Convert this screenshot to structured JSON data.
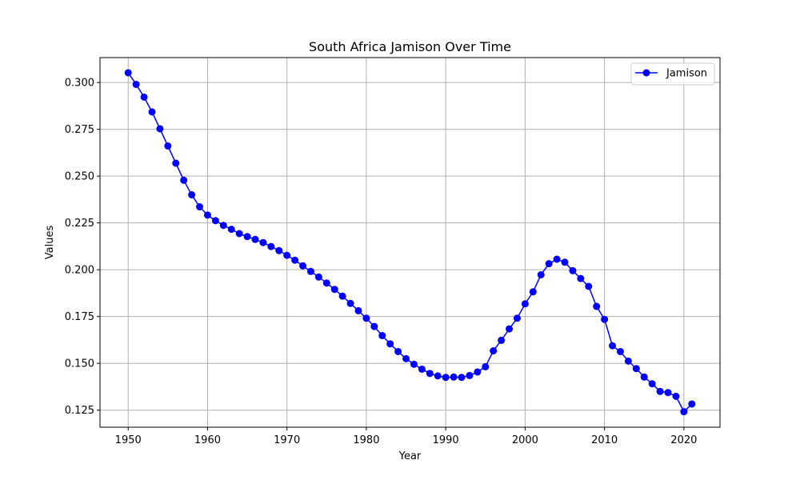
{
  "chart_data": {
    "type": "line",
    "title": "South Africa Jamison Over Time",
    "xlabel": "Year",
    "ylabel": "Values",
    "xlim": [
      1946.45,
      2024.55
    ],
    "ylim": [
      0.1159,
      0.3133
    ],
    "xticks": [
      1950,
      1960,
      1970,
      1980,
      1990,
      2000,
      2010,
      2020
    ],
    "yticks": [
      0.125,
      0.15,
      0.175,
      0.2,
      0.225,
      0.25,
      0.275,
      0.3
    ],
    "ytick_labels": [
      "0.125",
      "0.150",
      "0.175",
      "0.200",
      "0.225",
      "0.250",
      "0.275",
      "0.300"
    ],
    "grid": true,
    "legend_position": "upper right",
    "series": [
      {
        "name": "Jamison",
        "color": "#0000ff",
        "marker": "circle",
        "x": [
          1950,
          1951,
          1952,
          1953,
          1954,
          1955,
          1956,
          1957,
          1958,
          1959,
          1960,
          1961,
          1962,
          1963,
          1964,
          1965,
          1966,
          1967,
          1968,
          1969,
          1970,
          1971,
          1972,
          1973,
          1974,
          1975,
          1976,
          1977,
          1978,
          1979,
          1980,
          1981,
          1982,
          1983,
          1984,
          1985,
          1986,
          1987,
          1988,
          1989,
          1990,
          1991,
          1992,
          1993,
          1994,
          1995,
          1996,
          1997,
          1998,
          1999,
          2000,
          2001,
          2002,
          2003,
          2004,
          2005,
          2006,
          2007,
          2008,
          2009,
          2010,
          2011,
          2012,
          2013,
          2014,
          2015,
          2016,
          2017,
          2018,
          2019,
          2020,
          2021
        ],
        "y": [
          0.3052,
          0.299,
          0.2922,
          0.2843,
          0.2753,
          0.2661,
          0.2569,
          0.2478,
          0.24,
          0.2336,
          0.2292,
          0.2262,
          0.2237,
          0.2216,
          0.2193,
          0.2177,
          0.2162,
          0.2145,
          0.2124,
          0.2102,
          0.2077,
          0.2051,
          0.2021,
          0.1991,
          0.1961,
          0.1929,
          0.1895,
          0.1859,
          0.182,
          0.1781,
          0.1741,
          0.1697,
          0.1648,
          0.1604,
          0.1563,
          0.1525,
          0.1495,
          0.1469,
          0.1446,
          0.1433,
          0.1425,
          0.1427,
          0.1425,
          0.1435,
          0.1454,
          0.1482,
          0.1567,
          0.1623,
          0.1684,
          0.1741,
          0.1818,
          0.1882,
          0.1973,
          0.2032,
          0.2056,
          0.204,
          0.1995,
          0.1953,
          0.1911,
          0.1804,
          0.1735,
          0.1594,
          0.1563,
          0.1512,
          0.1472,
          0.1427,
          0.1391,
          0.135,
          0.1344,
          0.1324,
          0.1242,
          0.1283
        ]
      }
    ]
  }
}
